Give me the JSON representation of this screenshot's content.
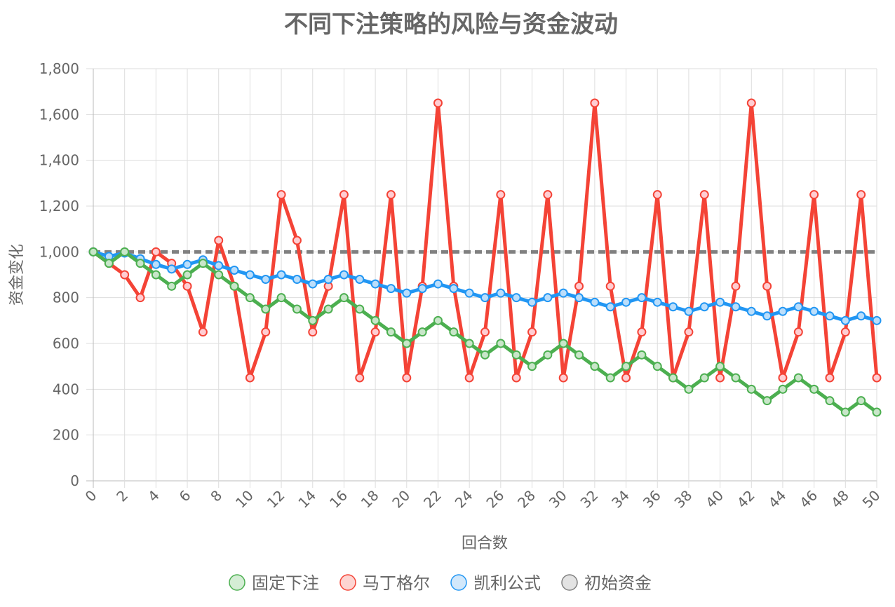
{
  "chart_data": {
    "type": "line",
    "title": "不同下注策略的风险与资金波动",
    "xlabel": "回合数",
    "ylabel": "资金变化",
    "xlim": [
      0,
      50
    ],
    "ylim": [
      0,
      1800
    ],
    "x_tick_labels": [
      "0",
      "2",
      "4",
      "6",
      "8",
      "10",
      "12",
      "14",
      "16",
      "18",
      "20",
      "22",
      "24",
      "26",
      "28",
      "30",
      "32",
      "34",
      "36",
      "38",
      "40",
      "42",
      "44",
      "46",
      "48",
      "50"
    ],
    "y_tick_labels": [
      "0",
      "200",
      "400",
      "600",
      "800",
      "1,000",
      "1,200",
      "1,400",
      "1,600",
      "1,800"
    ],
    "grid": true,
    "legend_position": "bottom",
    "x": [
      0,
      1,
      2,
      3,
      4,
      5,
      6,
      7,
      8,
      9,
      10,
      11,
      12,
      13,
      14,
      15,
      16,
      17,
      18,
      19,
      20,
      21,
      22,
      23,
      24,
      25,
      26,
      27,
      28,
      29,
      30,
      31,
      32,
      33,
      34,
      35,
      36,
      37,
      38,
      39,
      40,
      41,
      42,
      43,
      44,
      45,
      46,
      47,
      48,
      49,
      50
    ],
    "series": [
      {
        "name": "固定下注",
        "color": "#4caf50",
        "values": [
          1000,
          950,
          1000,
          950,
          900,
          850,
          900,
          950,
          900,
          850,
          800,
          750,
          800,
          750,
          700,
          750,
          800,
          750,
          700,
          650,
          600,
          650,
          700,
          650,
          600,
          550,
          600,
          550,
          500,
          550,
          600,
          550,
          500,
          450,
          500,
          550,
          500,
          450,
          400,
          450,
          500,
          450,
          400,
          350,
          400,
          450,
          400,
          350,
          300,
          350,
          300
        ]
      },
      {
        "name": "马丁格尔",
        "color": "#f44336",
        "values": [
          1000,
          950,
          900,
          800,
          1000,
          950,
          850,
          650,
          1050,
          850,
          450,
          650,
          1250,
          1050,
          650,
          850,
          1250,
          450,
          650,
          1250,
          450,
          850,
          1650,
          850,
          450,
          650,
          1250,
          450,
          650,
          1250,
          450,
          850,
          1650,
          850,
          450,
          650,
          1250,
          450,
          650,
          1250,
          450,
          850,
          1650,
          850,
          450,
          650,
          1250,
          450,
          650,
          1250,
          450
        ]
      },
      {
        "name": "凯利公式",
        "color": "#2196f3",
        "values": [
          1000,
          980,
          995,
          970,
          945,
          925,
          945,
          965,
          940,
          920,
          900,
          880,
          900,
          880,
          860,
          880,
          900,
          880,
          860,
          840,
          820,
          840,
          860,
          840,
          820,
          800,
          820,
          800,
          780,
          800,
          820,
          800,
          780,
          760,
          780,
          800,
          780,
          760,
          740,
          760,
          780,
          760,
          740,
          720,
          740,
          760,
          740,
          720,
          700,
          720,
          700
        ]
      },
      {
        "name": "初始资金",
        "color": "#808080",
        "dashed": true,
        "values": [
          1000,
          1000,
          1000,
          1000,
          1000,
          1000,
          1000,
          1000,
          1000,
          1000,
          1000,
          1000,
          1000,
          1000,
          1000,
          1000,
          1000,
          1000,
          1000,
          1000,
          1000,
          1000,
          1000,
          1000,
          1000,
          1000,
          1000,
          1000,
          1000,
          1000,
          1000,
          1000,
          1000,
          1000,
          1000,
          1000,
          1000,
          1000,
          1000,
          1000,
          1000,
          1000,
          1000,
          1000,
          1000,
          1000,
          1000,
          1000,
          1000,
          1000,
          1000
        ]
      }
    ]
  }
}
